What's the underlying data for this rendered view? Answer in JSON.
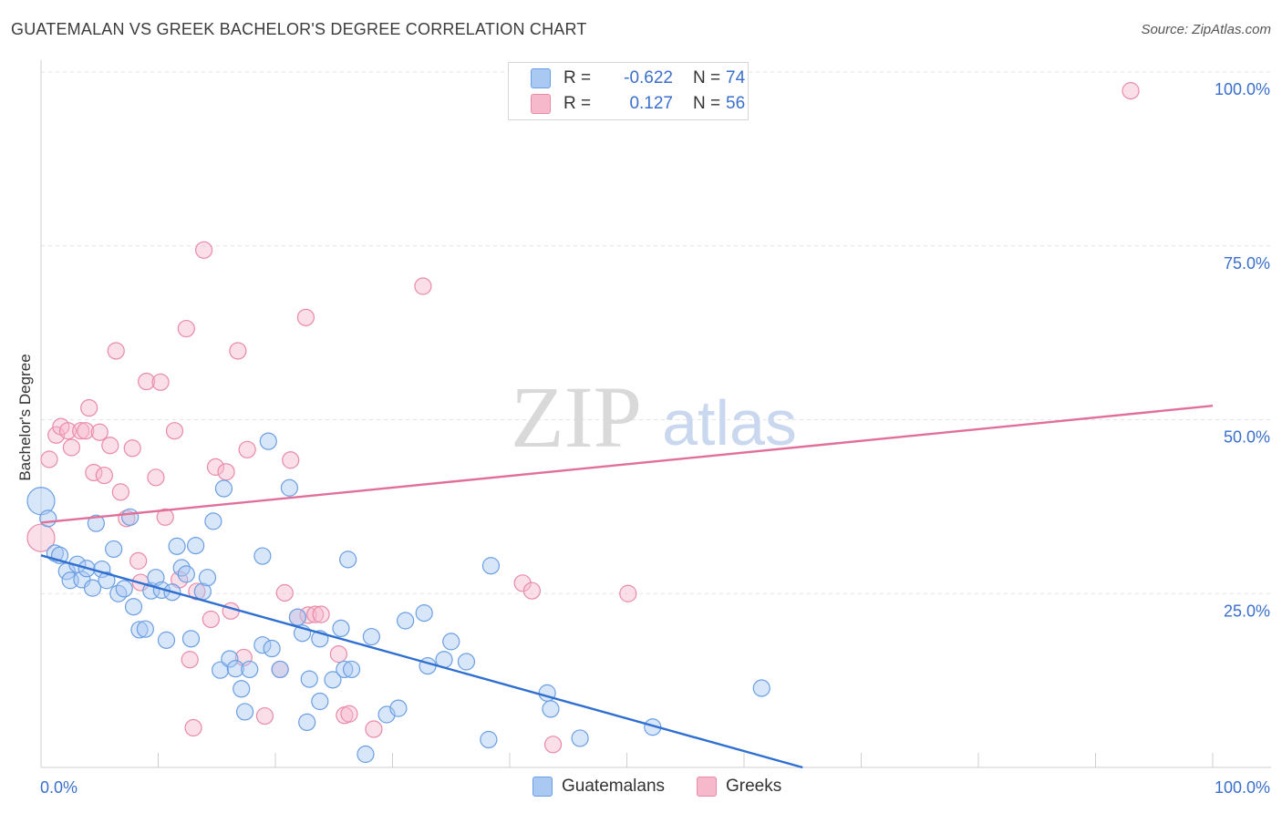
{
  "title": "GUATEMALAN VS GREEK BACHELOR'S DEGREE CORRELATION CHART",
  "source": "Source: ZipAtlas.com",
  "watermark": {
    "zip": "ZIP",
    "atlas": "atlas"
  },
  "legend": {
    "rows": [
      {
        "series": "Guatemalans",
        "r_label": "R =",
        "r_value": "-0.622",
        "n_label": "N =",
        "n_value": "74",
        "color": "#a9c8f2"
      },
      {
        "series": "Greeks",
        "r_label": "R =",
        "r_value": "0.127",
        "n_label": "N =",
        "n_value": "56",
        "color": "#f6b8cb"
      }
    ]
  },
  "chart_data": {
    "type": "scatter",
    "title": "GUATEMALAN VS GREEK BACHELOR'S DEGREE CORRELATION CHART",
    "xlabel": "",
    "ylabel": "Bachelor's Degree",
    "xlim": [
      0,
      100
    ],
    "ylim": [
      0,
      100
    ],
    "x_tick_labels": [
      "0.0%",
      "100.0%"
    ],
    "y_ticks": [
      {
        "value": 25,
        "label": "25.0%"
      },
      {
        "value": 50,
        "label": "50.0%"
      },
      {
        "value": 75,
        "label": "75.0%"
      },
      {
        "value": 100,
        "label": "100.0%"
      }
    ],
    "grid": true,
    "series": [
      {
        "name": "Guatemalans",
        "color": "#6b9fe3",
        "fill": "#a9c8f2",
        "trend": {
          "x": [
            0,
            65
          ],
          "y": [
            30.5,
            0
          ]
        },
        "points": [
          [
            0,
            38.3,
            2
          ],
          [
            0.6,
            35.8,
            1
          ],
          [
            1.2,
            30.8,
            1
          ],
          [
            1.6,
            30.5,
            1
          ],
          [
            2.2,
            28.2,
            1
          ],
          [
            2.5,
            26.9,
            1
          ],
          [
            3.1,
            29.2,
            1
          ],
          [
            3.5,
            27.0,
            1
          ],
          [
            3.9,
            28.6,
            1
          ],
          [
            4.4,
            25.8,
            1
          ],
          [
            4.7,
            35.1,
            1
          ],
          [
            5.2,
            28.5,
            1
          ],
          [
            5.6,
            26.9,
            1
          ],
          [
            6.2,
            31.4,
            1
          ],
          [
            6.6,
            25.0,
            1
          ],
          [
            7.1,
            25.7,
            1
          ],
          [
            7.6,
            36.0,
            1
          ],
          [
            7.9,
            23.1,
            1
          ],
          [
            8.4,
            19.8,
            1
          ],
          [
            8.9,
            19.9,
            1
          ],
          [
            9.4,
            25.4,
            1
          ],
          [
            9.8,
            27.3,
            1
          ],
          [
            10.3,
            25.5,
            1
          ],
          [
            10.7,
            18.3,
            1
          ],
          [
            11.2,
            25.2,
            1
          ],
          [
            11.6,
            31.8,
            1
          ],
          [
            12.0,
            28.7,
            1
          ],
          [
            12.4,
            27.8,
            1
          ],
          [
            12.8,
            18.5,
            1
          ],
          [
            13.2,
            31.9,
            1
          ],
          [
            13.8,
            25.3,
            1
          ],
          [
            14.2,
            27.3,
            1
          ],
          [
            14.7,
            35.4,
            1
          ],
          [
            15.3,
            14.0,
            1
          ],
          [
            15.6,
            40.1,
            1
          ],
          [
            16.1,
            15.6,
            1
          ],
          [
            16.6,
            14.2,
            1
          ],
          [
            17.1,
            11.3,
            1
          ],
          [
            17.4,
            8.0,
            1
          ],
          [
            17.8,
            14.1,
            1
          ],
          [
            18.9,
            30.4,
            1
          ],
          [
            18.9,
            17.6,
            1
          ],
          [
            19.4,
            46.9,
            1
          ],
          [
            19.7,
            17.1,
            1
          ],
          [
            20.4,
            14.1,
            1
          ],
          [
            21.2,
            40.2,
            1
          ],
          [
            21.9,
            21.6,
            1
          ],
          [
            22.3,
            19.3,
            1
          ],
          [
            22.7,
            6.5,
            1
          ],
          [
            22.9,
            12.7,
            1
          ],
          [
            23.8,
            9.5,
            1
          ],
          [
            23.8,
            18.5,
            1
          ],
          [
            24.9,
            12.6,
            1
          ],
          [
            25.6,
            20.0,
            1
          ],
          [
            25.9,
            14.1,
            1
          ],
          [
            26.5,
            14.1,
            1
          ],
          [
            26.2,
            29.9,
            1
          ],
          [
            27.7,
            1.9,
            1
          ],
          [
            28.2,
            18.8,
            1
          ],
          [
            29.5,
            7.6,
            1
          ],
          [
            30.5,
            8.5,
            1
          ],
          [
            31.1,
            21.1,
            1
          ],
          [
            32.7,
            22.2,
            1
          ],
          [
            33.0,
            14.6,
            1
          ],
          [
            34.4,
            15.5,
            1
          ],
          [
            35.0,
            18.1,
            1
          ],
          [
            36.3,
            15.2,
            1
          ],
          [
            38.2,
            4.0,
            1
          ],
          [
            38.4,
            29.0,
            1
          ],
          [
            43.2,
            10.7,
            1
          ],
          [
            43.5,
            8.4,
            1
          ],
          [
            46.0,
            4.2,
            1
          ],
          [
            52.2,
            5.8,
            1
          ],
          [
            61.5,
            11.4,
            1
          ]
        ]
      },
      {
        "name": "Greeks",
        "color": "#e98aa8",
        "fill": "#f6b8cb",
        "trend": {
          "x": [
            0,
            100
          ],
          "y": [
            35.2,
            52.0
          ]
        },
        "points": [
          [
            0,
            33.0,
            2
          ],
          [
            0.7,
            44.3,
            1
          ],
          [
            1.3,
            47.8,
            1
          ],
          [
            1.7,
            49.0,
            1
          ],
          [
            2.3,
            48.4,
            1
          ],
          [
            2.6,
            46.0,
            1
          ],
          [
            3.4,
            48.4,
            1
          ],
          [
            3.8,
            48.4,
            1
          ],
          [
            4.1,
            51.7,
            1
          ],
          [
            4.5,
            42.4,
            1
          ],
          [
            5.0,
            48.2,
            1
          ],
          [
            5.4,
            42.0,
            1
          ],
          [
            5.9,
            46.3,
            1
          ],
          [
            6.4,
            59.9,
            1
          ],
          [
            6.8,
            39.6,
            1
          ],
          [
            7.3,
            35.8,
            1
          ],
          [
            7.8,
            45.9,
            1
          ],
          [
            8.3,
            29.7,
            1
          ],
          [
            8.5,
            26.6,
            1
          ],
          [
            9.0,
            55.5,
            1
          ],
          [
            9.8,
            41.7,
            1
          ],
          [
            10.2,
            55.4,
            1
          ],
          [
            10.6,
            36.0,
            1
          ],
          [
            11.4,
            48.4,
            1
          ],
          [
            11.8,
            27.0,
            1
          ],
          [
            12.4,
            63.1,
            1
          ],
          [
            12.7,
            15.5,
            1
          ],
          [
            13.0,
            5.7,
            1
          ],
          [
            13.3,
            25.3,
            1
          ],
          [
            13.9,
            74.4,
            1
          ],
          [
            14.5,
            21.3,
            1
          ],
          [
            14.9,
            43.2,
            1
          ],
          [
            15.8,
            42.5,
            1
          ],
          [
            16.2,
            22.5,
            1
          ],
          [
            16.8,
            59.9,
            1
          ],
          [
            17.3,
            15.8,
            1
          ],
          [
            17.6,
            45.7,
            1
          ],
          [
            19.1,
            7.4,
            1
          ],
          [
            20.4,
            14.1,
            1
          ],
          [
            20.8,
            25.1,
            1
          ],
          [
            21.3,
            44.2,
            1
          ],
          [
            21.9,
            21.6,
            1
          ],
          [
            22.6,
            64.7,
            1
          ],
          [
            22.8,
            21.9,
            1
          ],
          [
            23.4,
            22.0,
            1
          ],
          [
            23.9,
            22.0,
            1
          ],
          [
            25.4,
            16.3,
            1
          ],
          [
            25.9,
            7.5,
            1
          ],
          [
            26.3,
            7.7,
            1
          ],
          [
            28.4,
            5.5,
            1
          ],
          [
            32.6,
            69.2,
            1
          ],
          [
            41.1,
            26.5,
            1
          ],
          [
            41.9,
            25.4,
            1
          ],
          [
            43.7,
            3.3,
            1
          ],
          [
            50.1,
            25.0,
            1
          ],
          [
            93.0,
            97.3,
            1
          ]
        ]
      }
    ]
  }
}
